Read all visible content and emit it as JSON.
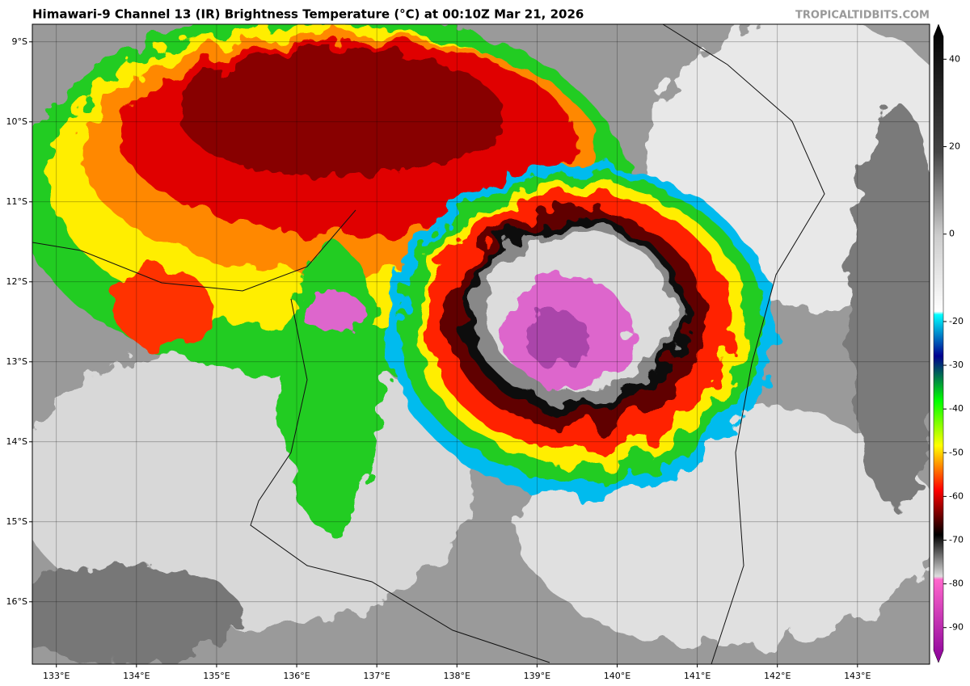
{
  "header": {
    "title": "Himawari-9 Channel 13 (IR) Brightness Temperature (°C) at 00:10Z Mar 21, 2026",
    "watermark": "TROPICALTIDBITS.COM"
  },
  "map": {
    "xlim": [
      132.7,
      143.9
    ],
    "ylim": [
      -16.78,
      -8.78
    ],
    "lon_ticks": [
      {
        "value": 133,
        "label": "133°E"
      },
      {
        "value": 134,
        "label": "134°E"
      },
      {
        "value": 135,
        "label": "135°E"
      },
      {
        "value": 136,
        "label": "136°E"
      },
      {
        "value": 137,
        "label": "137°E"
      },
      {
        "value": 138,
        "label": "138°E"
      },
      {
        "value": 139,
        "label": "139°E"
      },
      {
        "value": 140,
        "label": "140°E"
      },
      {
        "value": 141,
        "label": "141°E"
      },
      {
        "value": 142,
        "label": "142°E"
      },
      {
        "value": 143,
        "label": "143°E"
      }
    ],
    "lat_ticks": [
      {
        "value": -9,
        "label": "9°S"
      },
      {
        "value": -10,
        "label": "10°S"
      },
      {
        "value": -11,
        "label": "11°S"
      },
      {
        "value": -12,
        "label": "12°S"
      },
      {
        "value": -13,
        "label": "13°S"
      },
      {
        "value": -14,
        "label": "14°S"
      },
      {
        "value": -15,
        "label": "15°S"
      },
      {
        "value": -16,
        "label": "16°S"
      }
    ]
  },
  "colorbar": {
    "lim": [
      -98,
      48
    ],
    "ticks": [
      40,
      20,
      0,
      -20,
      -30,
      -40,
      -50,
      -60,
      -70,
      -80,
      -90
    ]
  }
}
